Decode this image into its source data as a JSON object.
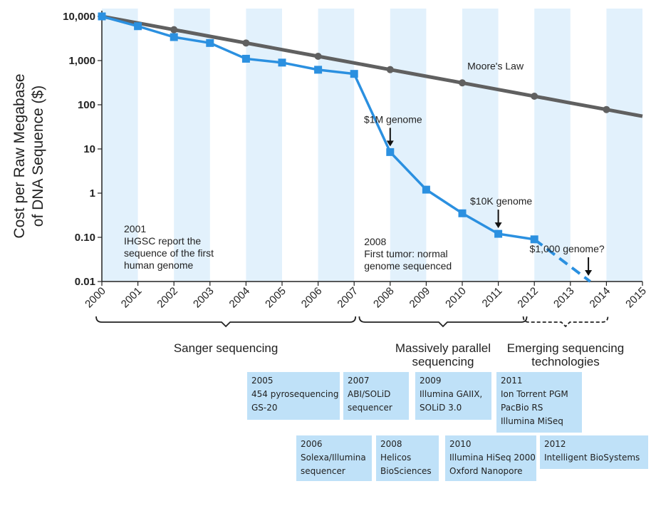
{
  "chart_data": {
    "type": "line",
    "ylabel": [
      "Cost per Raw Megabase",
      "of DNA Sequence ($)"
    ],
    "yscale": "log",
    "ylim": [
      0.01,
      10000
    ],
    "yticks": [
      {
        "value": 10000,
        "label": "10,000"
      },
      {
        "value": 1000,
        "label": "1,000"
      },
      {
        "value": 100,
        "label": "100"
      },
      {
        "value": 10,
        "label": "10"
      },
      {
        "value": 1,
        "label": "1"
      },
      {
        "value": 0.1,
        "label": "0.10"
      },
      {
        "value": 0.01,
        "label": "0.01"
      }
    ],
    "xlim": [
      2000,
      2015
    ],
    "xticks": [
      "2000",
      "2001",
      "2002",
      "2003",
      "2004",
      "2005",
      "2006",
      "2007",
      "2008",
      "2009",
      "2010",
      "2011",
      "2012",
      "2013",
      "2014",
      "2015"
    ],
    "background_bands": "alternating light blue columns, one per year",
    "series": [
      {
        "name": "",
        "color": "#2b90e0",
        "marker": "square",
        "x": [
          2000,
          2001,
          2002,
          2003,
          2004,
          2005,
          2006,
          2007,
          2008,
          2009,
          2010,
          2011,
          2012
        ],
        "y": [
          10000,
          6000,
          3400,
          2500,
          1100,
          900,
          620,
          500,
          8.5,
          1.2,
          0.35,
          0.12,
          0.09
        ],
        "projection": {
          "x": [
            2012,
            2013.55
          ],
          "y": [
            0.09,
            0.01
          ],
          "style": "dashed"
        }
      },
      {
        "name": "Moore's Law",
        "color": "#606060",
        "marker": "circle",
        "x": [
          2000,
          2001,
          2002,
          2003,
          2004,
          2005,
          2006,
          2007,
          2008,
          2009,
          2010,
          2011,
          2012,
          2013,
          2014,
          2015
        ],
        "y": [
          10000,
          7071,
          5000,
          3536,
          2500,
          1768,
          1250,
          884,
          625,
          442,
          313,
          221,
          156,
          110,
          78,
          55
        ],
        "markers_at": [
          2000,
          2002,
          2004,
          2006,
          2008,
          2010,
          2012,
          2014
        ]
      }
    ],
    "annotations": [
      {
        "text": "$1M genome",
        "arrow_x": 2008,
        "arrow_y": 8.5
      },
      {
        "text": "$10K genome",
        "arrow_x": 2011,
        "arrow_y": 0.12
      },
      {
        "text": "$1,000 genome?",
        "arrow_x": 2013.5,
        "arrow_y": 0.01
      }
    ],
    "notes": [
      {
        "lines": [
          "2001",
          "IHGSC report the",
          "sequence of the first",
          "human genome"
        ]
      },
      {
        "lines": [
          "2008",
          "First tumor: normal",
          "genome sequenced"
        ]
      }
    ],
    "eras": [
      {
        "lines": [
          "Sanger sequencing"
        ],
        "from": 2000,
        "to": 2007,
        "style": "solid"
      },
      {
        "lines": [
          "Massively parallel",
          "sequencing"
        ],
        "from": 2007.3,
        "to": 2011.75,
        "style": "solid"
      },
      {
        "lines": [
          "Emerging sequencing",
          "technologies"
        ],
        "from": 2011.85,
        "to": 2014,
        "style": "dashed"
      }
    ]
  },
  "technologies": [
    {
      "lines": [
        "2005",
        "454 pyrosequencing",
        "GS-20"
      ]
    },
    {
      "lines": [
        "2007",
        "ABI/SOLiD",
        "sequencer"
      ]
    },
    {
      "lines": [
        "2009",
        "Illumina GAIIX,",
        "SOLiD 3.0"
      ]
    },
    {
      "lines": [
        "2011",
        "Ion Torrent PGM",
        "PacBio RS",
        "Illumina MiSeq"
      ]
    },
    {
      "lines": [
        "2006",
        "Solexa/Illumina",
        "sequencer"
      ]
    },
    {
      "lines": [
        "2008",
        "Helicos",
        "BioSciences"
      ]
    },
    {
      "lines": [
        "2010",
        "Illumina HiSeq 2000",
        "Oxford Nanopore"
      ]
    },
    {
      "lines": [
        "2012",
        "Intelligent BioSystems"
      ]
    }
  ],
  "colors": {
    "band": "#e2f1fc",
    "box": "#bfe1f8",
    "primary": "#2b90e0",
    "moore": "#606060"
  }
}
